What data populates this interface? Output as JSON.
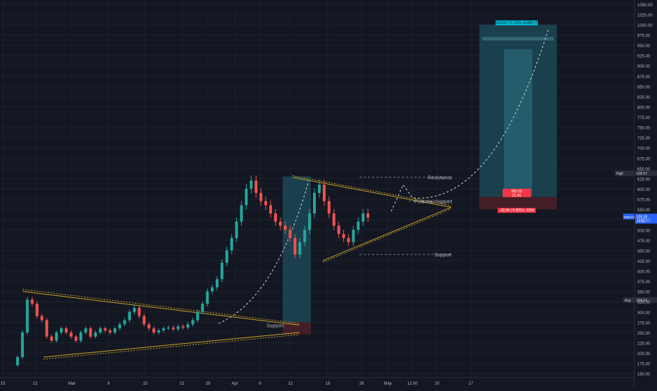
{
  "symbol": "BNBUSDT",
  "colors": {
    "background": "#131722",
    "up": "#26a69a",
    "down": "#ef5350",
    "grid": "#1e222d",
    "axis_text": "#b2b5be",
    "trend": "#c9a227",
    "target_zone": "#1d4d5c",
    "stop_zone": "#4a1f27",
    "label_bg": "#2a2e39"
  },
  "price_axis": {
    "ticks": [
      "1050.00",
      "1025.00",
      "1000.00",
      "975.00",
      "950.00",
      "925.00",
      "900.00",
      "875.00",
      "850.00",
      "825.00",
      "800.00",
      "775.00",
      "750.00",
      "725.00",
      "700.00",
      "675.00",
      "650.00",
      "625.00",
      "600.00",
      "575.00",
      "550.00",
      "525.00",
      "500.00",
      "475.00",
      "450.00",
      "425.00",
      "400.00",
      "375.00",
      "350.00",
      "325.00",
      "300.00",
      "275.00",
      "250.00",
      "225.00",
      "200.00",
      "175.00",
      "150.00"
    ]
  },
  "time_axis": {
    "ticks": [
      "15",
      "22",
      "Mar",
      "8",
      "15",
      "22",
      "29",
      "Apr",
      "6",
      "12",
      "19",
      "26",
      "May",
      "12:00",
      "10",
      "17"
    ]
  },
  "annotations": {
    "resistance": "Resistance",
    "potential_support": "Potential Support",
    "support_upper": "Support",
    "support_lower": "Support"
  },
  "labels": {
    "high": "High",
    "high_value": "638.57",
    "current_price": "529.28",
    "countdown": "14:50",
    "avg": "Avg",
    "avg_value": "329.24",
    "target_text": "419.84 (72.13%) 41984.77",
    "entry_text": "582.03",
    "entry_text2": "21.45",
    "stop_text": "-32.04 (-5.50%) -3204"
  },
  "chart_data": {
    "type": "candlestick",
    "series": [
      {
        "name": "BNBUSDT",
        "values": [
          170,
          190,
          250,
          330,
          320,
          290,
          280,
          240,
          230,
          250,
          260,
          250,
          240,
          230,
          250,
          260,
          240,
          250,
          260,
          255,
          250,
          260,
          270,
          280,
          300,
          310,
          290,
          270,
          260,
          250,
          255,
          260,
          262,
          258,
          265,
          262,
          270,
          280,
          300,
          320,
          350,
          360,
          380,
          420,
          450,
          480,
          520,
          560,
          600,
          620,
          590,
          570,
          560,
          540,
          520,
          510,
          500,
          480,
          440,
          470,
          500,
          540,
          590,
          610,
          570,
          540,
          510,
          490,
          480,
          470,
          500,
          520,
          540,
          530
        ]
      }
    ],
    "ylim": [
      140,
      1060
    ],
    "drawings": {
      "target_box": [
        580,
        1000
      ],
      "stop_box": [
        550,
        580
      ],
      "resistance_level": 628,
      "support_level": 440,
      "projected_target": 990
    }
  }
}
